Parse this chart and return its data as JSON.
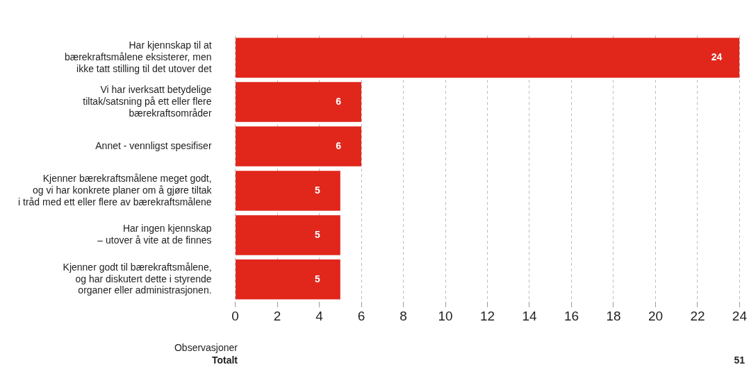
{
  "chart_data": {
    "type": "bar",
    "orientation": "horizontal",
    "categories": [
      "Har kjennskap til at\nbærekraftsmålene eksisterer, men\nikke tatt stilling til det utover det",
      "Vi har iverksatt betydelige\ntiltak/satsning på ett eller flere\nbærekraftsområder",
      "Annet - vennligst spesifiser",
      "Kjenner bærekraftsmålene meget godt,\nog vi har konkrete planer om å gjøre tiltak\ni tråd med ett eller flere av bærekraftsmålene",
      "Har ingen kjennskap\n– utover å vite at de finnes",
      "Kjenner godt til bærekraftsmålene,\nog har diskutert dette i styrende\norganer eller administrasjonen."
    ],
    "values": [
      24,
      6,
      6,
      5,
      5,
      5
    ],
    "color": "#e1261c",
    "xlim": [
      0,
      24
    ],
    "xticks": [
      0,
      2,
      4,
      6,
      8,
      10,
      12,
      14,
      16,
      18,
      20,
      22,
      24
    ],
    "grid": "x",
    "data_labels": true,
    "annotations": [
      "Observasjoner",
      "Totalt",
      "51"
    ]
  }
}
